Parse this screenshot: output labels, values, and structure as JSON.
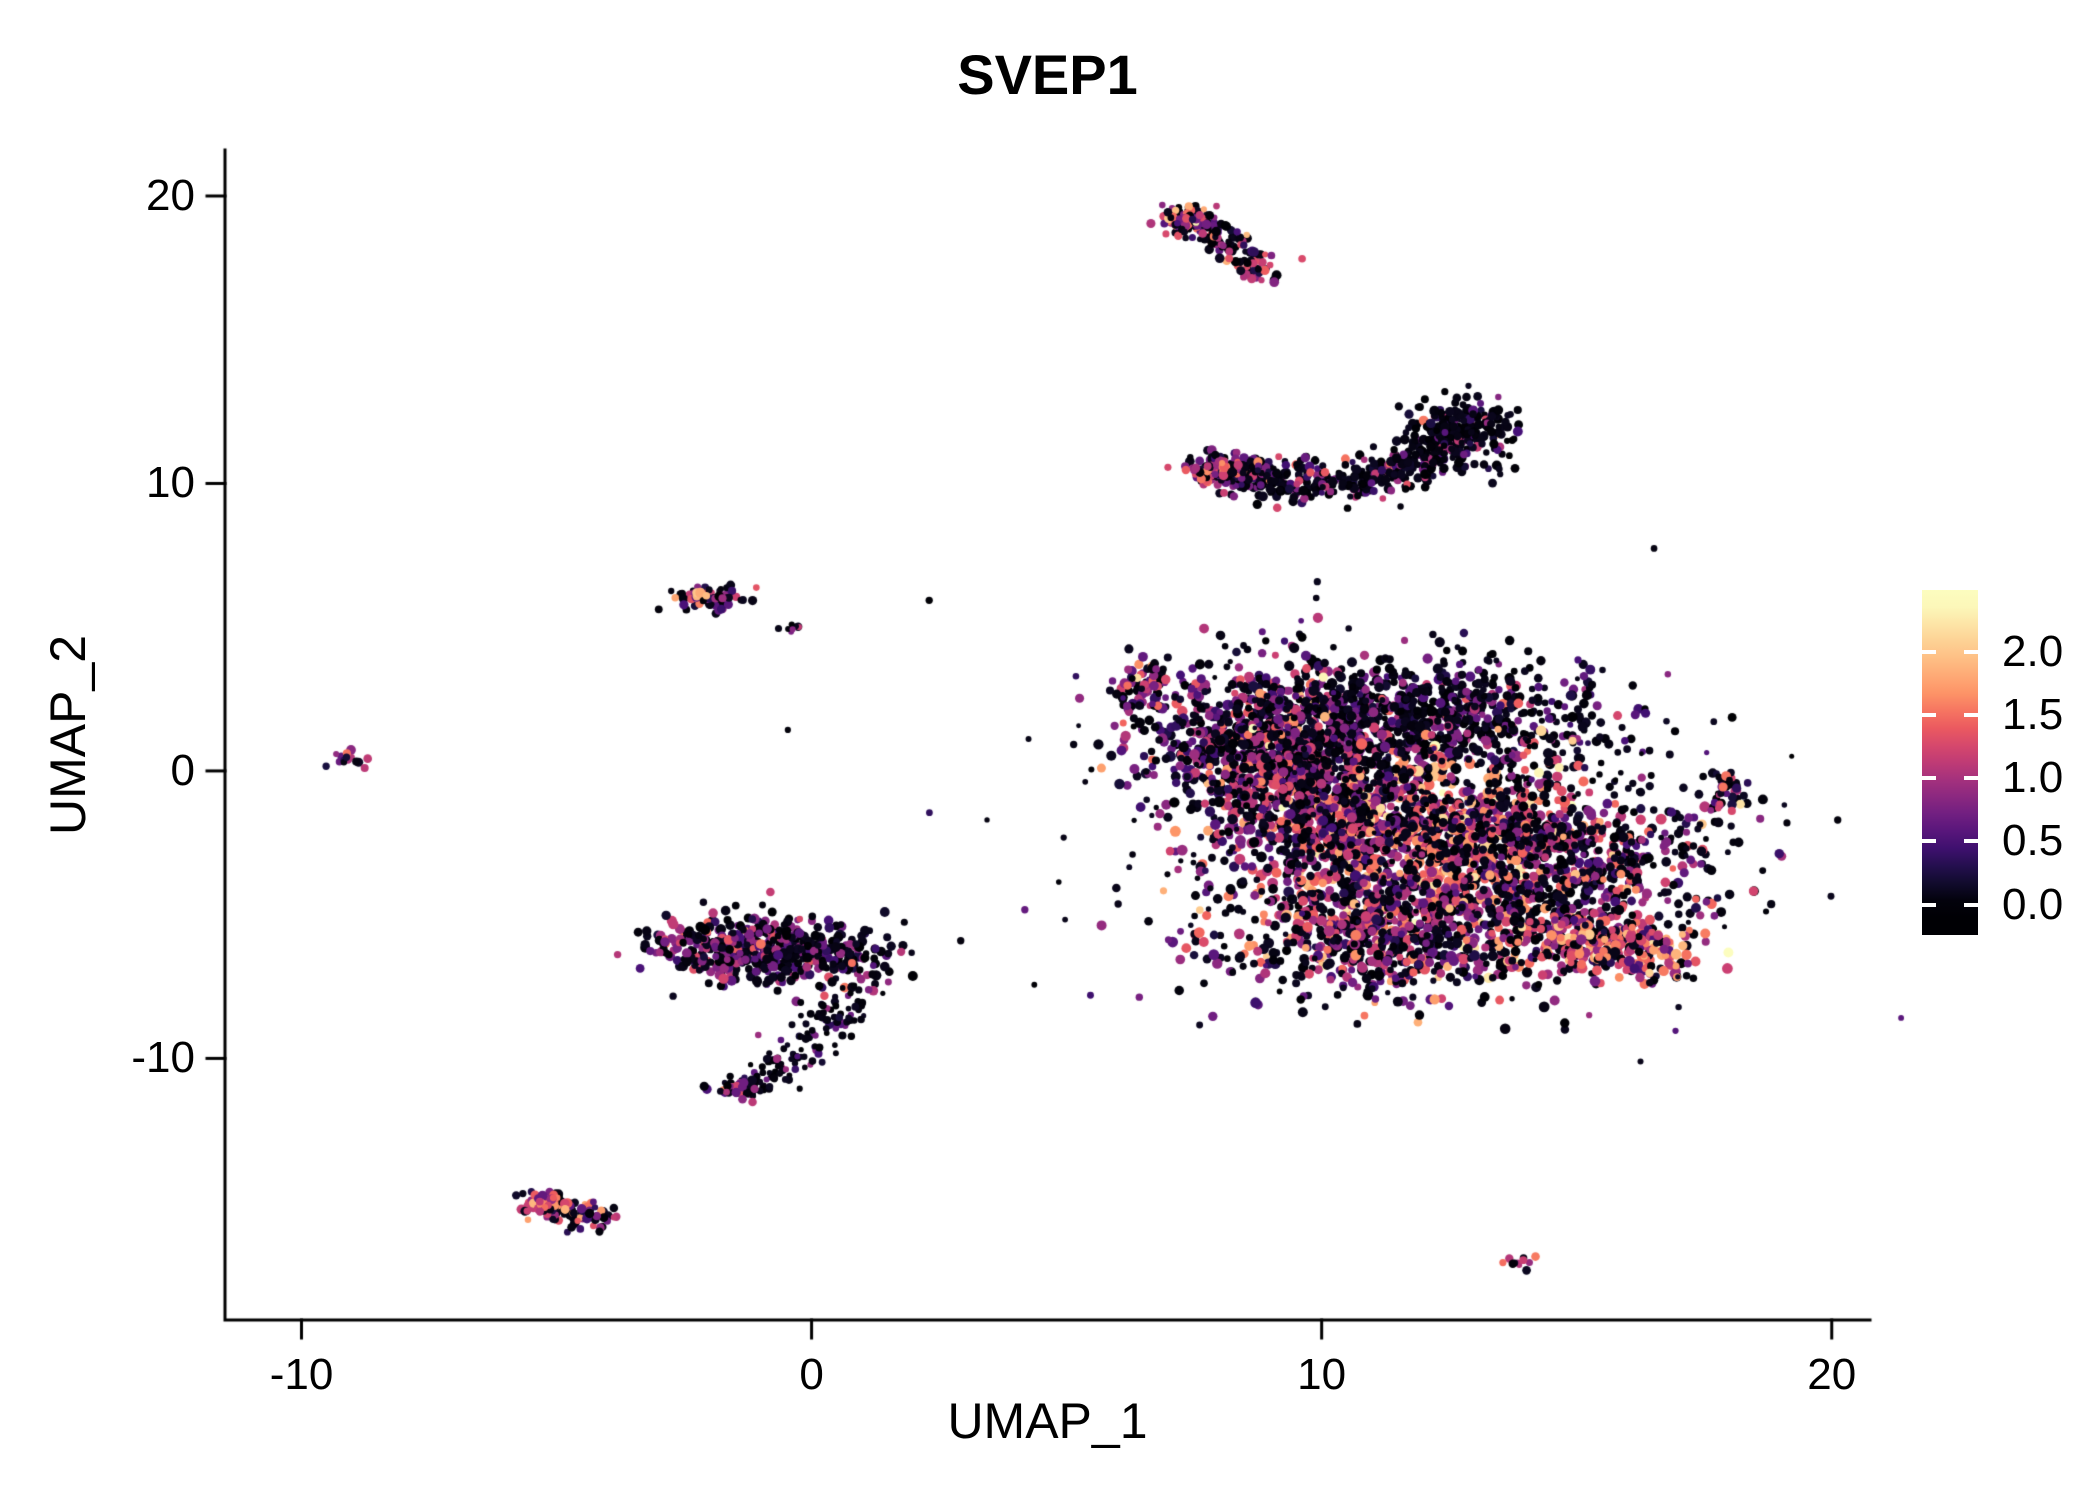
{
  "title": "SVEP1",
  "axes": {
    "x": {
      "label": "UMAP_1",
      "ticks": [
        -10,
        0,
        10,
        20
      ]
    },
    "y": {
      "label": "UMAP_2",
      "ticks": [
        20,
        10,
        0,
        -10
      ]
    }
  },
  "legend": {
    "ticks": [
      {
        "label": "2.0",
        "value": 2.0
      },
      {
        "label": "1.5",
        "value": 1.5
      },
      {
        "label": "1.0",
        "value": 1.0
      },
      {
        "label": "0.5",
        "value": 0.5
      },
      {
        "label": "0.0",
        "value": 0.0
      }
    ],
    "range": [
      -0.24,
      2.49
    ]
  },
  "colors": {
    "background": "#ffffff",
    "axis": "#000000",
    "text": "#000000",
    "colormap": [
      [
        0.0,
        "#000004"
      ],
      [
        0.1,
        "#180f3e"
      ],
      [
        0.2,
        "#451077"
      ],
      [
        0.3,
        "#721f81"
      ],
      [
        0.4,
        "#9f2f7f"
      ],
      [
        0.5,
        "#cd4071"
      ],
      [
        0.6,
        "#f1605d"
      ],
      [
        0.7,
        "#fd9567"
      ],
      [
        0.8,
        "#febb81"
      ],
      [
        0.9,
        "#fddc9e"
      ],
      [
        1.0,
        "#fcfdbf"
      ]
    ]
  },
  "chart_data": {
    "type": "scatter",
    "title": "SVEP1",
    "xlabel": "UMAP_1",
    "ylabel": "UMAP_2",
    "xlim": [
      -11.5,
      20.75
    ],
    "ylim": [
      -19.1,
      21.6
    ],
    "color_scale": {
      "min": 0.0,
      "max": 2.4,
      "ticks": [
        0.0,
        0.5,
        1.0,
        1.5,
        2.0
      ],
      "palette": "magma"
    },
    "seed": 42,
    "clusters": [
      {
        "name": "top-tadpole",
        "type": "curve",
        "pts": [
          [
            7.1,
            19.45
          ],
          [
            7.6,
            19.05
          ],
          [
            8.2,
            18.35
          ],
          [
            8.85,
            17.3
          ]
        ],
        "w": 0.22,
        "n": 170,
        "vals": {
          "p0": 0.55,
          "mean": 0.8,
          "sd": 0.5
        },
        "r": 3.8
      },
      {
        "name": "top-tadpole-head",
        "type": "gauss",
        "cx": 7.35,
        "cy": 19.1,
        "sx": 0.3,
        "sy": 0.25,
        "n": 45,
        "vals": {
          "p0": 0.3,
          "mean": 1.1,
          "sd": 0.45
        },
        "r": 3.8
      },
      {
        "name": "crescent-body",
        "type": "curve",
        "pts": [
          [
            7.9,
            10.6
          ],
          [
            9.2,
            10.05
          ],
          [
            10.9,
            10.1
          ],
          [
            12.15,
            10.85
          ],
          [
            13.0,
            12.3
          ]
        ],
        "w": 0.33,
        "n": 520,
        "vals": {
          "p0": 0.66,
          "mean": 0.7,
          "sd": 0.45
        },
        "r": 3.8
      },
      {
        "name": "crescent-right-head",
        "type": "gauss",
        "cx": 12.75,
        "cy": 11.8,
        "sx": 0.5,
        "sy": 0.6,
        "n": 190,
        "vals": {
          "p0": 0.75,
          "mean": 0.55,
          "sd": 0.4
        },
        "r": 3.8
      },
      {
        "name": "crescent-left-tip",
        "type": "gauss",
        "cx": 8.05,
        "cy": 10.45,
        "sx": 0.35,
        "sy": 0.22,
        "n": 70,
        "vals": {
          "p0": 0.3,
          "mean": 1.05,
          "sd": 0.4
        },
        "r": 3.8
      },
      {
        "name": "upper-mid-small",
        "type": "gauss",
        "cx": -1.95,
        "cy": 6.05,
        "sx": 0.4,
        "sy": 0.22,
        "n": 60,
        "vals": {
          "p0": 0.45,
          "mean": 0.85,
          "sd": 0.5
        },
        "r": 3.8
      },
      {
        "name": "upper-mid-orange",
        "type": "gauss",
        "cx": -2.25,
        "cy": 6.0,
        "sx": 0.12,
        "sy": 0.1,
        "n": 4,
        "vals": {
          "p0": 0,
          "mean": 1.9,
          "sd": 0.15
        },
        "r": 4.2
      },
      {
        "name": "upper-mid-satellite",
        "type": "gauss",
        "cx": -0.42,
        "cy": 5.0,
        "sx": 0.12,
        "sy": 0.1,
        "n": 8,
        "vals": {
          "p0": 0.3,
          "mean": 0.9,
          "sd": 0.4
        },
        "r": 3.5
      },
      {
        "name": "far-left-dot",
        "type": "gauss",
        "cx": -9.1,
        "cy": 0.45,
        "sx": 0.22,
        "sy": 0.16,
        "n": 15,
        "vals": {
          "p0": 0.3,
          "mean": 1.0,
          "sd": 0.5
        },
        "r": 3.8
      },
      {
        "name": "main-upper-left-tip",
        "type": "gauss",
        "cx": 6.55,
        "cy": 3.0,
        "sx": 0.3,
        "sy": 0.5,
        "n": 70,
        "vals": {
          "p0": 0.3,
          "mean": 1.0,
          "sd": 0.5
        },
        "r": 4.0
      },
      {
        "name": "main-upper-left",
        "type": "gauss",
        "cx": 9.0,
        "cy": 1.1,
        "sx": 1.3,
        "sy": 1.25,
        "n": 850,
        "vals": {
          "p0": 0.42,
          "mean": 0.85,
          "sd": 0.45
        },
        "r": 4.2
      },
      {
        "name": "main-upper-right",
        "type": "gauss",
        "cx": 12.1,
        "cy": 2.0,
        "sx": 1.7,
        "sy": 1.0,
        "n": 700,
        "vals": {
          "p0": 0.62,
          "mean": 0.6,
          "sd": 0.42
        },
        "r": 4.0
      },
      {
        "name": "main-center-bright",
        "type": "gauss",
        "cx": 12.3,
        "cy": -2.3,
        "sx": 1.7,
        "sy": 1.5,
        "n": 900,
        "vals": {
          "p0": 0.2,
          "mean": 1.35,
          "sd": 0.5
        },
        "r": 4.4
      },
      {
        "name": "main-mid-left",
        "type": "gauss",
        "cx": 9.9,
        "cy": -1.5,
        "sx": 1.1,
        "sy": 1.3,
        "n": 550,
        "vals": {
          "p0": 0.38,
          "mean": 0.95,
          "sd": 0.5
        },
        "r": 4.2
      },
      {
        "name": "main-lower",
        "type": "gauss",
        "cx": 11.3,
        "cy": -5.6,
        "sx": 1.7,
        "sy": 1.15,
        "n": 750,
        "vals": {
          "p0": 0.33,
          "mean": 1.0,
          "sd": 0.55
        },
        "r": 4.2
      },
      {
        "name": "main-right",
        "type": "gauss",
        "cx": 14.9,
        "cy": -3.6,
        "sx": 1.5,
        "sy": 1.6,
        "n": 650,
        "vals": {
          "p0": 0.5,
          "mean": 0.9,
          "sd": 0.55
        },
        "r": 4.0
      },
      {
        "name": "main-right-arm",
        "type": "curve",
        "pts": [
          [
            14.6,
            -5.5
          ],
          [
            15.7,
            -6.05
          ],
          [
            16.75,
            -6.5
          ]
        ],
        "w": 0.45,
        "n": 280,
        "vals": {
          "p0": 0.25,
          "mean": 1.25,
          "sd": 0.5
        },
        "r": 4.2
      },
      {
        "name": "main-halo-specks",
        "type": "gauss",
        "cx": 11.5,
        "cy": -1.6,
        "sx": 3.1,
        "sy": 3.0,
        "n": 420,
        "vals": {
          "p0": 0.82,
          "mean": 0.4,
          "sd": 0.3
        },
        "r": 3.0
      },
      {
        "name": "right-small",
        "type": "gauss",
        "cx": 17.95,
        "cy": -0.75,
        "sx": 0.2,
        "sy": 0.35,
        "n": 35,
        "vals": {
          "p0": 0.5,
          "mean": 0.85,
          "sd": 0.5
        },
        "r": 3.8
      },
      {
        "name": "right-small-tip",
        "type": "gauss",
        "cx": 17.8,
        "cy": -1.25,
        "sx": 0.1,
        "sy": 0.12,
        "n": 6,
        "vals": {
          "p0": 0,
          "mean": 1.3,
          "sd": 0.3
        },
        "r": 3.8
      },
      {
        "name": "midleft-blob-a",
        "type": "gauss",
        "cx": -1.6,
        "cy": -6.1,
        "sx": 0.8,
        "sy": 0.55,
        "n": 300,
        "vals": {
          "p0": 0.42,
          "mean": 0.8,
          "sd": 0.4
        },
        "r": 4.0
      },
      {
        "name": "midleft-blob-b",
        "type": "gauss",
        "cx": -0.05,
        "cy": -6.35,
        "sx": 0.85,
        "sy": 0.6,
        "n": 270,
        "vals": {
          "p0": 0.6,
          "mean": 0.7,
          "sd": 0.4
        },
        "r": 4.0
      },
      {
        "name": "midleft-tail",
        "type": "curve",
        "pts": [
          [
            0.85,
            -7.7
          ],
          [
            0.35,
            -8.9
          ],
          [
            -0.5,
            -10.2
          ],
          [
            -1.5,
            -11.1
          ]
        ],
        "w": 0.28,
        "n": 150,
        "vals": {
          "p0": 0.78,
          "mean": 0.5,
          "sd": 0.35
        },
        "r": 3.2
      },
      {
        "name": "midleft-tail-tip",
        "type": "gauss",
        "cx": -1.5,
        "cy": -11.1,
        "sx": 0.28,
        "sy": 0.16,
        "n": 28,
        "vals": {
          "p0": 0.35,
          "mean": 1.0,
          "sd": 0.4
        },
        "r": 3.8
      },
      {
        "name": "bottom-left-streak",
        "type": "curve",
        "pts": [
          [
            -5.45,
            -15.0
          ],
          [
            -4.75,
            -15.3
          ],
          [
            -4.05,
            -15.7
          ]
        ],
        "w": 0.24,
        "n": 95,
        "vals": {
          "p0": 0.4,
          "mean": 0.95,
          "sd": 0.5
        },
        "r": 3.8
      },
      {
        "name": "bottom-left-bright",
        "type": "gauss",
        "cx": -5.25,
        "cy": -15.05,
        "sx": 0.2,
        "sy": 0.14,
        "n": 30,
        "vals": {
          "p0": 0.15,
          "mean": 1.25,
          "sd": 0.4
        },
        "r": 4.0
      },
      {
        "name": "bottom-right-tiny",
        "type": "gauss",
        "cx": 13.75,
        "cy": -17.1,
        "sx": 0.18,
        "sy": 0.1,
        "n": 12,
        "vals": {
          "p0": 0.55,
          "mean": 0.9,
          "sd": 0.5
        },
        "r": 3.4
      }
    ]
  }
}
